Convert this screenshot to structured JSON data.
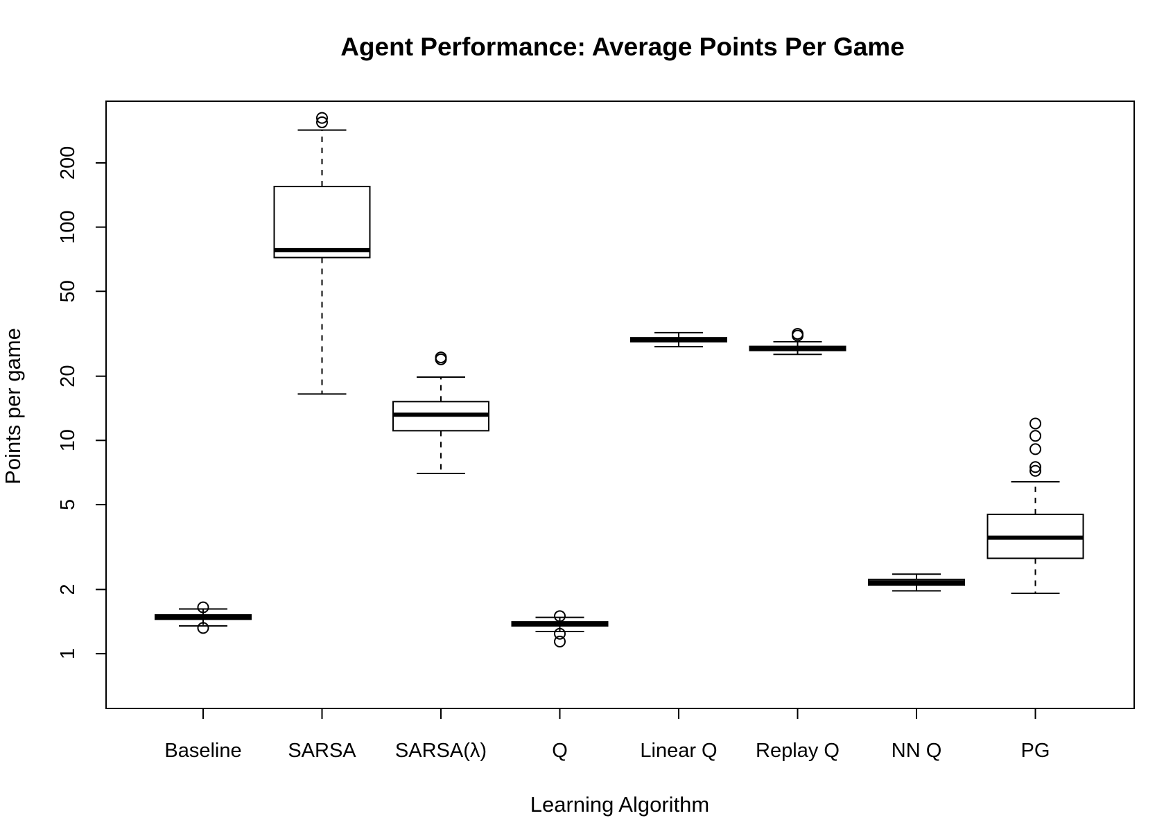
{
  "chart_data": {
    "type": "box",
    "title": "Agent Performance: Average Points Per Game",
    "xlabel": "Learning Algorithm",
    "ylabel": "Points per game",
    "y_scale": "log",
    "ylim": [
      0.55,
      370
    ],
    "y_ticks": [
      1,
      2,
      5,
      10,
      20,
      50,
      100,
      200
    ],
    "grid": false,
    "categories": [
      "Baseline",
      "SARSA",
      "SARSA(λ)",
      "Q",
      "Linear Q",
      "Replay Q",
      "NN Q",
      "PG"
    ],
    "boxes": [
      {
        "whisker_low": 1.35,
        "q1": 1.45,
        "median": 1.48,
        "q3": 1.52,
        "whisker_high": 1.62,
        "outliers": [
          1.65,
          1.32
        ]
      },
      {
        "whisker_low": 16.5,
        "q1": 72,
        "median": 78,
        "q3": 155,
        "whisker_high": 285,
        "outliers": [
          310,
          325
        ]
      },
      {
        "whisker_low": 7.0,
        "q1": 11.1,
        "median": 13.2,
        "q3": 15.2,
        "whisker_high": 19.8,
        "outliers": [
          24,
          24.5
        ]
      },
      {
        "whisker_low": 1.27,
        "q1": 1.35,
        "median": 1.38,
        "q3": 1.41,
        "whisker_high": 1.48,
        "outliers": [
          1.5,
          1.24,
          1.14
        ]
      },
      {
        "whisker_low": 27.5,
        "q1": 29.0,
        "median": 29.7,
        "q3": 30.3,
        "whisker_high": 32.0,
        "outliers": []
      },
      {
        "whisker_low": 25.3,
        "q1": 26.4,
        "median": 27.0,
        "q3": 27.6,
        "whisker_high": 29.0,
        "outliers": [
          31.0,
          31.6
        ]
      },
      {
        "whisker_low": 1.97,
        "q1": 2.1,
        "median": 2.16,
        "q3": 2.23,
        "whisker_high": 2.36,
        "outliers": []
      },
      {
        "whisker_low": 1.92,
        "q1": 2.8,
        "median": 3.5,
        "q3": 4.5,
        "whisker_high": 6.4,
        "outliers": [
          7.2,
          7.5,
          9.1,
          10.5,
          12.0
        ]
      }
    ]
  }
}
